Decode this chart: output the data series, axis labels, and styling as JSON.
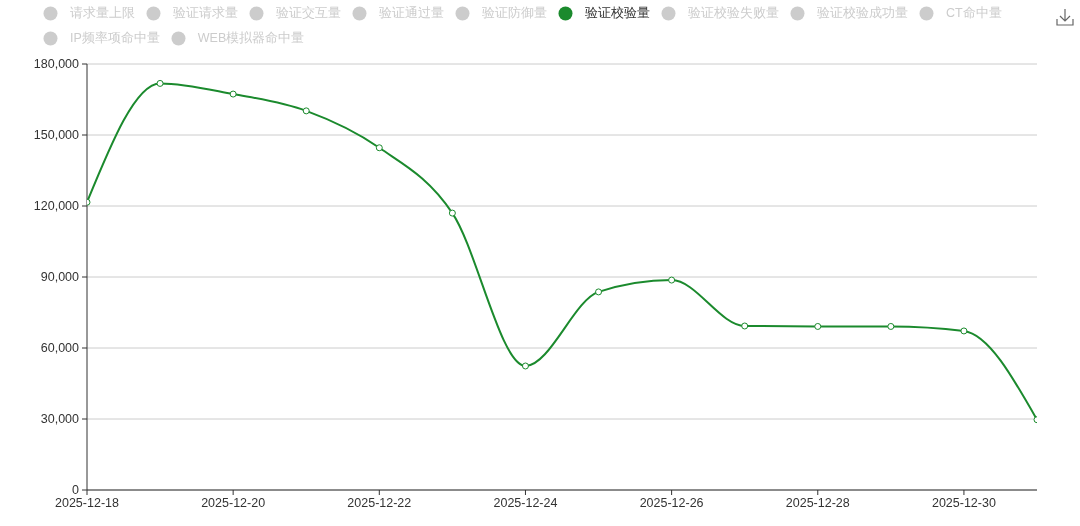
{
  "chart_data": {
    "type": "line",
    "x": [
      "2025-12-18",
      "2025-12-19",
      "2025-12-20",
      "2025-12-21",
      "2025-12-22",
      "2025-12-23",
      "2025-12-24",
      "2025-12-25",
      "2025-12-26",
      "2025-12-27",
      "2025-12-28",
      "2025-12-29",
      "2025-12-30",
      "2025-12-31"
    ],
    "xlim": [
      "2025-12-18",
      "2025-12-31"
    ],
    "xticks": [
      "2025-12-18",
      "2025-12-20",
      "2025-12-22",
      "2025-12-24",
      "2025-12-26",
      "2025-12-28",
      "2025-12-30"
    ],
    "ylim": [
      0,
      180000
    ],
    "yticks": [
      0,
      {
        "value": 30000,
        "label": "30,000"
      },
      {
        "value": 60000,
        "label": "60,000"
      },
      {
        "value": 90000,
        "label": "90,000"
      },
      {
        "value": 120000,
        "label": "120,000"
      },
      {
        "value": 150000,
        "label": "150,000"
      },
      {
        "value": 180000,
        "label": "180,000"
      }
    ],
    "grid": "y",
    "legend": "top",
    "marker": "circle",
    "line_style": "solid",
    "series": [
      {
        "name": "请求量上限",
        "color": "#cccccc",
        "values": [
          null,
          null,
          null,
          null,
          null,
          null,
          null,
          null,
          null,
          null,
          null,
          null,
          null,
          null
        ]
      },
      {
        "name": "验证请求量",
        "color": "#cccccc",
        "values": [
          null,
          null,
          null,
          null,
          null,
          null,
          null,
          null,
          null,
          null,
          null,
          null,
          null,
          null
        ]
      },
      {
        "name": "验证交互量",
        "color": "#cccccc",
        "values": [
          null,
          null,
          null,
          null,
          null,
          null,
          null,
          null,
          null,
          null,
          null,
          null,
          null,
          null
        ]
      },
      {
        "name": "验证通过量",
        "color": "#cccccc",
        "values": [
          null,
          null,
          null,
          null,
          null,
          null,
          null,
          null,
          null,
          null,
          null,
          null,
          null,
          null
        ]
      },
      {
        "name": "验证防御量",
        "color": "#cccccc",
        "values": [
          null,
          null,
          null,
          null,
          null,
          null,
          null,
          null,
          null,
          null,
          null,
          null,
          null,
          null
        ]
      },
      {
        "name": "验证校验量",
        "color": "#1b8a2d",
        "values": [
          121600,
          171800,
          167300,
          160200,
          144600,
          117000,
          52400,
          83700,
          88700,
          69300,
          69100,
          69100,
          67200,
          29700
        ]
      },
      {
        "name": "验证校验失败量",
        "color": "#cccccc",
        "values": [
          null,
          null,
          null,
          null,
          null,
          null,
          null,
          null,
          null,
          null,
          null,
          null,
          null,
          null
        ]
      },
      {
        "name": "验证校验成功量",
        "color": "#cccccc",
        "values": [
          null,
          null,
          null,
          null,
          null,
          null,
          null,
          null,
          null,
          null,
          null,
          null,
          null,
          null
        ]
      },
      {
        "name": "CT命中量",
        "color": "#cccccc",
        "values": [
          null,
          null,
          null,
          null,
          null,
          null,
          null,
          null,
          null,
          null,
          null,
          null,
          null,
          null
        ]
      },
      {
        "name": "IP频率项命中量",
        "color": "#cccccc",
        "values": [
          null,
          null,
          null,
          null,
          null,
          null,
          null,
          null,
          null,
          null,
          null,
          null,
          null,
          null
        ]
      },
      {
        "name": "WEB模拟器命中量",
        "color": "#cccccc",
        "values": [
          null,
          null,
          null,
          null,
          null,
          null,
          null,
          null,
          null,
          null,
          null,
          null,
          null,
          null
        ]
      }
    ]
  }
}
